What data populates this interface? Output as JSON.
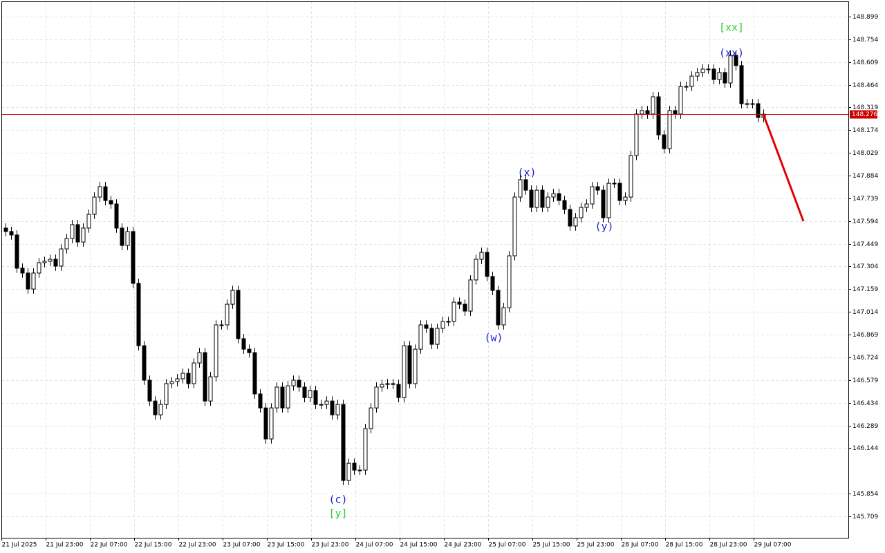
{
  "chart_data": {
    "type": "candlestick",
    "xlim": [
      -0.75,
      152.375
    ],
    "ylim": [
      145.572,
      148.996
    ],
    "grid": true,
    "bull_color": "#ffffff",
    "bear_color": "#000000",
    "xticks": [
      {
        "value": 0,
        "label": "21 Jul 2025"
      },
      {
        "value": 8,
        "label": "21 Jul 23:00"
      },
      {
        "value": 16,
        "label": "22 Jul 07:00"
      },
      {
        "value": 24,
        "label": "22 Jul 15:00"
      },
      {
        "value": 32,
        "label": "22 Jul 23:00"
      },
      {
        "value": 40,
        "label": "23 Jul 07:00"
      },
      {
        "value": 48,
        "label": "23 Jul 15:00"
      },
      {
        "value": 56,
        "label": "23 Jul 23:00"
      },
      {
        "value": 64,
        "label": "24 Jul 07:00"
      },
      {
        "value": 72,
        "label": "24 Jul 15:00"
      },
      {
        "value": 80,
        "label": "24 Jul 23:00"
      },
      {
        "value": 88,
        "label": "25 Jul 07:00"
      },
      {
        "value": 96,
        "label": "25 Jul 15:00"
      },
      {
        "value": 104,
        "label": "25 Jul 23:00"
      },
      {
        "value": 112,
        "label": "28 Jul 07:00"
      },
      {
        "value": 120,
        "label": "28 Jul 15:00"
      },
      {
        "value": 128,
        "label": "28 Jul 23:00"
      },
      {
        "value": 136,
        "label": "29 Jul 07:00"
      }
    ],
    "yticks": [
      148.899,
      148.754,
      148.609,
      148.464,
      148.319,
      148.174,
      148.029,
      147.884,
      147.739,
      147.594,
      147.449,
      147.304,
      147.159,
      147.014,
      146.869,
      146.724,
      146.579,
      146.434,
      146.289,
      146.144,
      145.854,
      145.709
    ],
    "open": [
      147.549,
      147.527,
      147.505,
      147.293,
      147.262,
      147.16,
      147.262,
      147.328,
      147.337,
      147.35,
      147.306,
      147.416,
      147.482,
      147.571,
      147.46,
      147.549,
      147.637,
      147.747,
      147.813,
      147.725,
      147.703,
      147.549,
      147.438,
      147.527,
      147.196,
      146.798,
      146.578,
      146.445,
      146.357,
      146.423,
      146.556,
      146.569,
      146.587,
      146.622,
      146.556,
      146.688,
      146.754,
      146.445,
      146.6,
      146.931,
      146.931,
      147.063,
      147.151,
      146.843,
      146.776,
      146.754,
      146.49,
      146.401,
      146.203,
      146.401,
      146.534,
      146.401,
      146.542,
      146.578,
      146.534,
      146.467,
      146.512,
      146.423,
      146.423,
      146.445,
      146.357,
      146.423,
      145.938,
      146.048,
      146.004,
      146.004,
      146.269,
      146.401,
      146.534,
      146.551,
      146.556,
      146.551,
      146.467,
      146.798,
      146.556,
      146.776,
      146.931,
      146.909,
      146.807,
      146.909,
      146.953,
      146.953,
      147.076,
      147.063,
      147.019,
      147.218,
      147.35,
      147.394,
      147.24,
      147.151,
      146.931,
      147.041,
      147.372,
      147.747,
      147.858,
      147.791,
      147.681,
      147.791,
      147.681,
      147.747,
      147.769,
      147.725,
      147.668,
      147.562,
      147.615,
      147.681,
      147.703,
      147.813,
      147.791,
      147.615,
      147.835,
      147.835,
      147.725,
      147.747,
      148.012,
      148.277,
      148.299,
      148.277,
      148.387,
      148.144,
      148.056,
      148.299,
      148.277,
      148.453,
      148.453,
      148.519,
      148.542,
      148.564,
      148.564,
      148.497,
      148.542,
      148.475,
      148.652,
      148.586,
      148.343,
      148.343,
      148.343,
      148.255
    ],
    "high": [
      147.579,
      147.557,
      147.535,
      147.323,
      147.292,
      147.292,
      147.358,
      147.367,
      147.38,
      147.38,
      147.446,
      147.512,
      147.601,
      147.601,
      147.579,
      147.667,
      147.777,
      147.843,
      147.843,
      147.755,
      147.733,
      147.579,
      147.557,
      147.557,
      147.226,
      146.828,
      146.608,
      146.475,
      146.453,
      146.586,
      146.599,
      146.617,
      146.652,
      146.652,
      146.718,
      146.784,
      146.784,
      146.63,
      146.961,
      146.961,
      147.093,
      147.181,
      147.181,
      146.873,
      146.806,
      146.784,
      146.52,
      146.431,
      146.431,
      146.564,
      146.564,
      146.572,
      146.608,
      146.608,
      146.564,
      146.542,
      146.542,
      146.453,
      146.475,
      146.475,
      146.453,
      146.453,
      146.078,
      146.078,
      146.034,
      146.299,
      146.431,
      146.564,
      146.581,
      146.586,
      146.586,
      146.581,
      146.828,
      146.828,
      146.806,
      146.961,
      146.961,
      146.939,
      146.939,
      146.983,
      146.983,
      147.106,
      147.106,
      147.093,
      147.248,
      147.38,
      147.424,
      147.424,
      147.27,
      147.181,
      147.071,
      147.402,
      147.777,
      147.888,
      147.888,
      147.821,
      147.821,
      147.821,
      147.777,
      147.799,
      147.799,
      147.755,
      147.698,
      147.645,
      147.711,
      147.733,
      147.843,
      147.843,
      147.821,
      147.865,
      147.865,
      147.865,
      147.777,
      148.042,
      148.307,
      148.329,
      148.329,
      148.417,
      148.417,
      148.174,
      148.329,
      148.329,
      148.483,
      148.483,
      148.549,
      148.572,
      148.594,
      148.594,
      148.594,
      148.572,
      148.572,
      148.682,
      148.682,
      148.616,
      148.373,
      148.373,
      148.373,
      148.306
    ],
    "low": [
      147.497,
      147.475,
      147.263,
      147.232,
      147.13,
      147.13,
      147.232,
      147.298,
      147.307,
      147.276,
      147.276,
      147.386,
      147.452,
      147.43,
      147.43,
      147.519,
      147.607,
      147.717,
      147.695,
      147.673,
      147.519,
      147.408,
      147.408,
      147.166,
      146.768,
      146.548,
      146.415,
      146.327,
      146.327,
      146.393,
      146.526,
      146.539,
      146.557,
      146.526,
      146.526,
      146.658,
      146.415,
      146.415,
      146.57,
      146.901,
      146.901,
      147.033,
      146.813,
      146.746,
      146.724,
      146.46,
      146.371,
      146.173,
      146.173,
      146.371,
      146.371,
      146.371,
      146.512,
      146.504,
      146.437,
      146.437,
      146.393,
      146.393,
      146.393,
      146.327,
      146.327,
      145.908,
      145.908,
      145.974,
      145.974,
      145.974,
      146.239,
      146.371,
      146.504,
      146.521,
      146.521,
      146.437,
      146.437,
      146.526,
      146.526,
      146.746,
      146.879,
      146.777,
      146.777,
      146.879,
      146.923,
      146.923,
      147.033,
      146.989,
      146.989,
      147.188,
      147.32,
      147.21,
      147.121,
      146.901,
      146.901,
      147.011,
      147.342,
      147.717,
      147.761,
      147.651,
      147.651,
      147.651,
      147.651,
      147.717,
      147.695,
      147.638,
      147.532,
      147.532,
      147.585,
      147.651,
      147.673,
      147.761,
      147.585,
      147.585,
      147.805,
      147.695,
      147.695,
      147.717,
      147.982,
      148.247,
      148.247,
      148.247,
      148.114,
      148.026,
      148.026,
      148.247,
      148.247,
      148.423,
      148.423,
      148.489,
      148.512,
      148.534,
      148.467,
      148.467,
      148.445,
      148.445,
      148.556,
      148.313,
      148.313,
      148.313,
      148.225,
      148.225
    ],
    "close": [
      147.527,
      147.505,
      147.293,
      147.262,
      147.16,
      147.262,
      147.328,
      147.337,
      147.35,
      147.306,
      147.416,
      147.482,
      147.571,
      147.46,
      147.549,
      147.637,
      147.747,
      147.813,
      147.725,
      147.703,
      147.549,
      147.438,
      147.527,
      147.196,
      146.798,
      146.578,
      146.445,
      146.357,
      146.423,
      146.556,
      146.569,
      146.587,
      146.622,
      146.556,
      146.688,
      146.754,
      146.445,
      146.6,
      146.931,
      146.931,
      147.063,
      147.151,
      146.843,
      146.776,
      146.754,
      146.49,
      146.401,
      146.203,
      146.401,
      146.534,
      146.401,
      146.542,
      146.578,
      146.534,
      146.467,
      146.512,
      146.423,
      146.423,
      146.445,
      146.357,
      146.423,
      145.938,
      146.048,
      146.004,
      146.004,
      146.269,
      146.401,
      146.534,
      146.551,
      146.556,
      146.551,
      146.467,
      146.798,
      146.556,
      146.776,
      146.931,
      146.909,
      146.807,
      146.909,
      146.953,
      146.953,
      147.076,
      147.063,
      147.019,
      147.218,
      147.35,
      147.394,
      147.24,
      147.151,
      146.931,
      147.041,
      147.372,
      147.747,
      147.858,
      147.791,
      147.681,
      147.791,
      147.681,
      147.747,
      147.769,
      147.725,
      147.668,
      147.562,
      147.615,
      147.681,
      147.703,
      147.813,
      147.791,
      147.615,
      147.835,
      147.835,
      147.725,
      147.747,
      148.012,
      148.277,
      148.299,
      148.277,
      148.387,
      148.144,
      148.056,
      148.299,
      148.277,
      148.453,
      148.453,
      148.519,
      148.542,
      148.564,
      148.564,
      148.497,
      148.542,
      148.475,
      148.652,
      148.586,
      148.343,
      148.343,
      148.343,
      148.255,
      148.276
    ],
    "current_price": 148.276,
    "price_line_color": "#cc0000",
    "forecast": {
      "x": [
        137,
        144.25
      ],
      "values": [
        148.276,
        147.593
      ],
      "color": "#e00000"
    },
    "annotations": [
      {
        "text": "[xx]",
        "color": "#33cc33"
      },
      {
        "text": "(xx)",
        "color": "#1a1ad6"
      },
      {
        "text": "(x)",
        "color": "#1a1ad6"
      },
      {
        "text": "(y)",
        "color": "#1a1ad6"
      },
      {
        "text": "(w)",
        "color": "#1a1ad6"
      },
      {
        "text": "(c)",
        "color": "#1a1ad6"
      },
      {
        "text": "[y]",
        "color": "#33cc33"
      }
    ]
  }
}
